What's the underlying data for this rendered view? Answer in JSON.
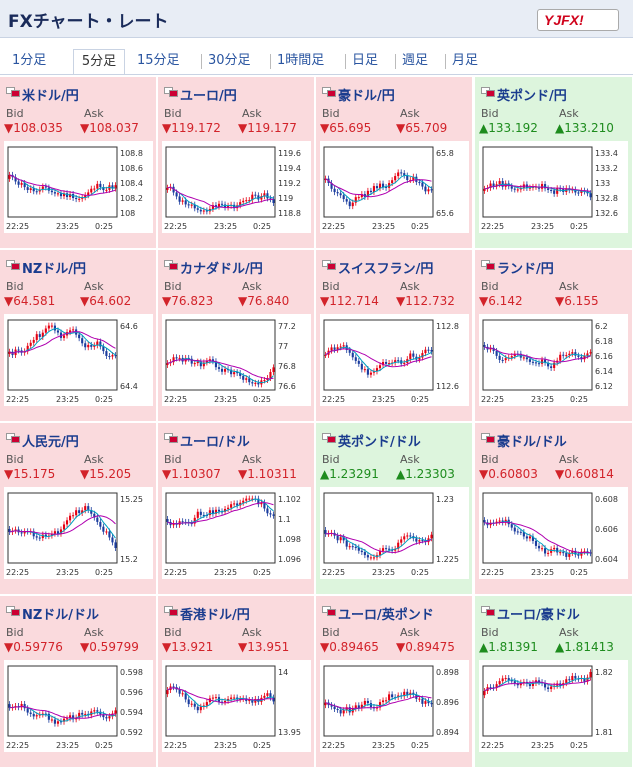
{
  "header": {
    "title": "FXチャート・レート",
    "logo": "YJFX!"
  },
  "tabs": [
    "1分足",
    "5分足",
    "15分足",
    "30分足",
    "1時間足",
    "日足",
    "週足",
    "月足"
  ],
  "active_tab": "5分足",
  "labels": {
    "bid": "Bid",
    "ask": "Ask"
  },
  "x_ticks": [
    "22:25",
    "23:25",
    "0:25"
  ],
  "colors": {
    "down_bg": "#fadadd",
    "up_bg": "#ddf5dd",
    "down_text": "#d2232a",
    "up_text": "#1e8c1e",
    "candle_up": "#e60012",
    "candle_down": "#1a3c9e",
    "ma_short": "#00a0c0",
    "ma_long": "#b000b0"
  },
  "cards": [
    {
      "name": "米ドル/円",
      "trend": "down",
      "bid": "▼108.035",
      "ask": "▼108.037",
      "y_ticks": [
        "108.8",
        "108.6",
        "108.4",
        "108.2",
        "108"
      ]
    },
    {
      "name": "ユーロ/円",
      "trend": "down",
      "bid": "▼119.172",
      "ask": "▼119.177",
      "y_ticks": [
        "119.6",
        "119.4",
        "119.2",
        "119",
        "118.8"
      ]
    },
    {
      "name": "豪ドル/円",
      "trend": "down",
      "bid": "▼65.695",
      "ask": "▼65.709",
      "y_ticks": [
        "65.8",
        "65.6"
      ]
    },
    {
      "name": "英ポンド/円",
      "trend": "up",
      "bid": "▲133.192",
      "ask": "▲133.210",
      "y_ticks": [
        "133.4",
        "133.2",
        "133",
        "132.8",
        "132.6"
      ]
    },
    {
      "name": "NZドル/円",
      "trend": "down",
      "bid": "▼64.581",
      "ask": "▼64.602",
      "y_ticks": [
        "64.6",
        "64.4"
      ]
    },
    {
      "name": "カナダドル/円",
      "trend": "down",
      "bid": "▼76.823",
      "ask": "▼76.840",
      "y_ticks": [
        "77.2",
        "77",
        "76.8",
        "76.6"
      ]
    },
    {
      "name": "スイスフラン/円",
      "trend": "down",
      "bid": "▼112.714",
      "ask": "▼112.732",
      "y_ticks": [
        "112.8",
        "112.6"
      ]
    },
    {
      "name": "ランド/円",
      "trend": "down",
      "bid": "▼6.142",
      "ask": "▼6.155",
      "y_ticks": [
        "6.2",
        "6.18",
        "6.16",
        "6.14",
        "6.12"
      ]
    },
    {
      "name": "人民元/円",
      "trend": "down",
      "bid": "▼15.175",
      "ask": "▼15.205",
      "y_ticks": [
        "15.25",
        "15.2"
      ]
    },
    {
      "name": "ユーロ/ドル",
      "trend": "down",
      "bid": "▼1.10307",
      "ask": "▼1.10311",
      "y_ticks": [
        "1.102",
        "1.1",
        "1.098",
        "1.096"
      ]
    },
    {
      "name": "英ポンド/ドル",
      "trend": "up",
      "bid": "▲1.23291",
      "ask": "▲1.23303",
      "y_ticks": [
        "1.23",
        "1.225"
      ]
    },
    {
      "name": "豪ドル/ドル",
      "trend": "down",
      "bid": "▼0.60803",
      "ask": "▼0.60814",
      "y_ticks": [
        "0.608",
        "0.606",
        "0.604"
      ]
    },
    {
      "name": "NZドル/ドル",
      "trend": "down",
      "bid": "▼0.59776",
      "ask": "▼0.59799",
      "y_ticks": [
        "0.598",
        "0.596",
        "0.594",
        "0.592"
      ]
    },
    {
      "name": "香港ドル/円",
      "trend": "down",
      "bid": "▼13.921",
      "ask": "▼13.951",
      "y_ticks": [
        "14",
        "13.95"
      ]
    },
    {
      "name": "ユーロ/英ポンド",
      "trend": "down",
      "bid": "▼0.89465",
      "ask": "▼0.89475",
      "y_ticks": [
        "0.898",
        "0.896",
        "0.894"
      ]
    },
    {
      "name": "ユーロ/豪ドル",
      "trend": "up",
      "bid": "▲1.81391",
      "ask": "▲1.81413",
      "y_ticks": [
        "1.82",
        "1.81"
      ]
    }
  ]
}
